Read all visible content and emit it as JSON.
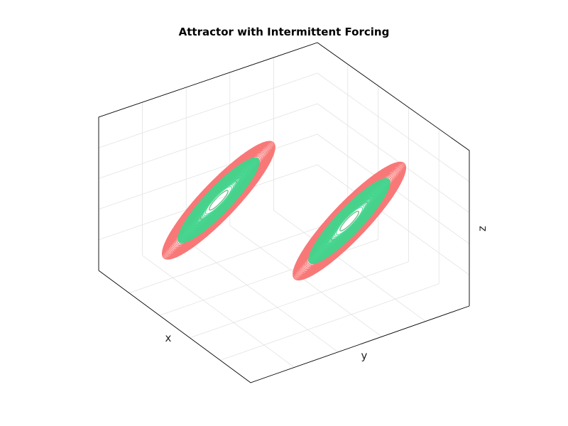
{
  "chart_data": {
    "type": "line",
    "projection": "3d",
    "title": "Attractor with Intermittent Forcing",
    "xlabel": "x",
    "ylabel": "y",
    "zlabel": "z",
    "ticks_shown": false,
    "grid": true,
    "legend": "none",
    "series": [
      {
        "color": "#f87171",
        "lobes": [
          {
            "center": [
              -8,
              -8,
              27
            ],
            "r_min": 3,
            "r_max": 18,
            "loops": 30
          },
          {
            "center": [
              8,
              8,
              27
            ],
            "r_min": 3,
            "r_max": 18,
            "loops": 30
          }
        ]
      },
      {
        "color": "#3dd68c",
        "lobes": [
          {
            "center": [
              -8,
              -8,
              27
            ],
            "r_min": 3,
            "r_max": 13,
            "loops": 70
          },
          {
            "center": [
              8,
              8,
              27
            ],
            "r_min": 3,
            "r_max": 13,
            "loops": 70
          }
        ]
      }
    ]
  }
}
